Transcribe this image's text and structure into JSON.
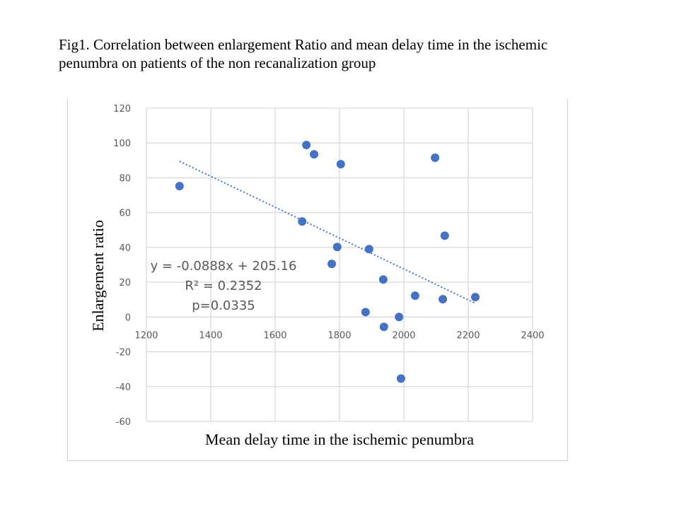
{
  "chart_data": {
    "type": "scatter",
    "title": "Fig1. Correlation between enlargement Ratio and mean delay time in the ischemic penumbra on patients of the non recanalization group",
    "xlabel": "Mean delay time in the ischemic penumbra",
    "ylabel": "Enlargement ratio",
    "xlim": [
      1200,
      2400
    ],
    "ylim": [
      -60,
      120
    ],
    "xticks": [
      1200,
      1400,
      1600,
      1800,
      2000,
      2200,
      2400
    ],
    "yticks": [
      -60,
      -40,
      -20,
      0,
      20,
      40,
      60,
      80,
      100,
      120
    ],
    "grid": true,
    "marker_color": "#4472C4",
    "points": [
      [
        1303,
        75.2
      ],
      [
        1697,
        98.8
      ],
      [
        1721,
        93.5
      ],
      [
        1804,
        87.8
      ],
      [
        2097,
        91.5
      ],
      [
        1684,
        54.9
      ],
      [
        2127,
        46.7
      ],
      [
        1793,
        40.2
      ],
      [
        1892,
        39.0
      ],
      [
        1776,
        30.5
      ],
      [
        1936,
        21.5
      ],
      [
        2035,
        12.2
      ],
      [
        2121,
        10.2
      ],
      [
        2222,
        11.4
      ],
      [
        1881,
        2.8
      ],
      [
        1985,
        0.0
      ],
      [
        1938,
        -5.7
      ],
      [
        1991,
        -35.4
      ]
    ],
    "trendline": {
      "type": "linear",
      "slope": -0.0888,
      "intercept": 205.16,
      "x_range": [
        1303,
        2222
      ],
      "style": "dotted"
    },
    "annotations": [
      "y = -0.0888x + 205.16",
      "R² = 0.2352",
      "p=0.0335"
    ]
  }
}
